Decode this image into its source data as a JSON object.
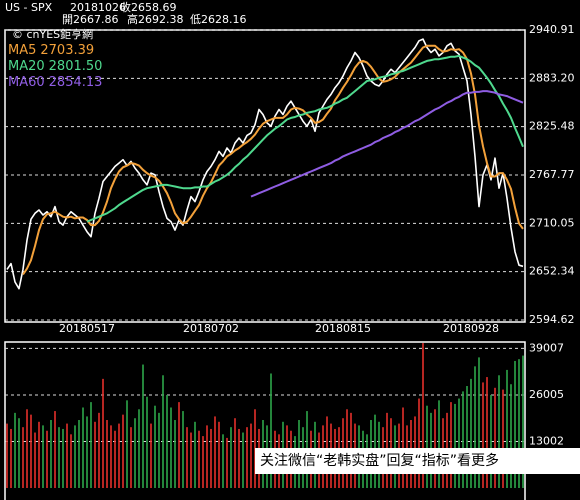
{
  "header": {
    "symbol": "US - SPX",
    "date": "20181026",
    "quotes": [
      {
        "label": "收",
        "value": 2658.69
      },
      {
        "label": "開",
        "value": 2667.86
      },
      {
        "label": "高",
        "value": 2692.38
      },
      {
        "label": "低",
        "value": 2628.16
      }
    ]
  },
  "watermark": "© cnYES鉅亨網",
  "footer": "关注微信“老韩实盘”回复“指标”看更多",
  "chart_data": [
    {
      "type": "line",
      "categories": [
        null,
        null,
        null,
        null,
        null,
        null,
        null,
        null,
        null,
        null,
        null,
        null,
        null,
        null,
        null,
        null,
        null,
        null,
        null,
        null,
        "20180517",
        null,
        null,
        null,
        null,
        null,
        null,
        null,
        null,
        null,
        null,
        null,
        null,
        null,
        null,
        null,
        null,
        null,
        null,
        null,
        null,
        null,
        null,
        null,
        null,
        null,
        null,
        null,
        null,
        null,
        null,
        "20180702",
        null,
        null,
        null,
        null,
        null,
        null,
        null,
        null,
        null,
        null,
        null,
        null,
        null,
        null,
        null,
        null,
        null,
        null,
        null,
        null,
        null,
        null,
        null,
        null,
        null,
        null,
        null,
        null,
        null,
        null,
        null,
        null,
        "20180815",
        null,
        null,
        null,
        null,
        null,
        null,
        null,
        null,
        null,
        null,
        null,
        null,
        null,
        null,
        null,
        null,
        null,
        null,
        null,
        null,
        null,
        null,
        null,
        null,
        null,
        null,
        null,
        null,
        null,
        null,
        null,
        "20180928",
        null,
        null,
        null,
        null,
        null,
        null,
        null,
        null,
        null,
        null,
        null,
        null,
        null
      ],
      "ylim": [
        2594.62,
        2940.91
      ],
      "yticks": [
        2594.62,
        2652.34,
        2710.05,
        2767.77,
        2825.48,
        {
          "value": 2883.2,
          "label": "2883.20"
        },
        2940.91
      ],
      "grid": true,
      "series": [
        {
          "color": "#ffffff",
          "values": [
            2655,
            2662,
            2640,
            2632,
            2655,
            2690,
            2715,
            2722,
            2726,
            2720,
            2724,
            2718,
            2730,
            2712,
            2708,
            2718,
            2724,
            2720,
            2716,
            2708,
            2700,
            2694,
            2722,
            2740,
            2760,
            2766,
            2772,
            2778,
            2782,
            2786,
            2779,
            2784,
            2776,
            2770,
            2762,
            2756,
            2770,
            2768,
            2748,
            2730,
            2716,
            2712,
            2702,
            2714,
            2708,
            2726,
            2742,
            2736,
            2748,
            2762,
            2772,
            2778,
            2786,
            2796,
            2790,
            2800,
            2794,
            2806,
            2812,
            2806,
            2815,
            2818,
            2828,
            2846,
            2840,
            2830,
            2826,
            2838,
            2846,
            2840,
            2850,
            2856,
            2848,
            2840,
            2832,
            2826,
            2834,
            2820,
            2842,
            2850,
            2858,
            2864,
            2872,
            2878,
            2886,
            2896,
            2904,
            2914,
            2908,
            2898,
            2886,
            2880,
            2876,
            2874,
            2880,
            2888,
            2894,
            2890,
            2896,
            2902,
            2908,
            2914,
            2920,
            2928,
            2930,
            2920,
            2914,
            2918,
            2910,
            2914,
            2922,
            2925,
            2916,
            2912,
            2896,
            2880,
            2840,
            2790,
            2730,
            2768,
            2780,
            2762,
            2788,
            2752,
            2770,
            2740,
            2705,
            2676,
            2660,
            2658.69
          ]
        },
        {
          "name": "MA5",
          "legend_label": "2703.39",
          "color": "#f3a13a",
          "values": [
            null,
            null,
            null,
            null,
            2649,
            2656,
            2666,
            2683,
            2702,
            2715,
            2721,
            2722,
            2724,
            2721,
            2718,
            2717,
            2718,
            2716,
            2717,
            2717,
            2714,
            2708,
            2708,
            2713,
            2723,
            2736,
            2752,
            2763,
            2772,
            2777,
            2779,
            2782,
            2781,
            2779,
            2774,
            2770,
            2767,
            2765,
            2761,
            2754,
            2746,
            2735,
            2722,
            2715,
            2710,
            2712,
            2718,
            2725,
            2732,
            2743,
            2752,
            2759,
            2769,
            2779,
            2784,
            2790,
            2793,
            2797,
            2800,
            2804,
            2807,
            2811,
            2816,
            2823,
            2829,
            2832,
            2834,
            2836,
            2836,
            2836,
            2840,
            2846,
            2848,
            2847,
            2845,
            2840,
            2836,
            2830,
            2831,
            2834,
            2841,
            2847,
            2857,
            2864,
            2872,
            2879,
            2887,
            2896,
            2902,
            2904,
            2902,
            2897,
            2890,
            2883,
            2879,
            2880,
            2882,
            2885,
            2890,
            2894,
            2898,
            2902,
            2908,
            2914,
            2920,
            2922,
            2922,
            2922,
            2918,
            2915,
            2916,
            2918,
            2917,
            2918,
            2914,
            2906,
            2889,
            2864,
            2827,
            2802,
            2782,
            2766,
            2766,
            2770,
            2770,
            2762,
            2751,
            2729,
            2710,
            2703.39
          ]
        },
        {
          "name": "MA20",
          "legend_label": "2801.50",
          "color": "#4fd98e",
          "values": [
            null,
            null,
            null,
            null,
            null,
            null,
            null,
            null,
            null,
            null,
            null,
            null,
            null,
            null,
            null,
            null,
            null,
            null,
            null,
            null,
            2712,
            2714,
            2716,
            2718,
            2720,
            2722,
            2725,
            2728,
            2732,
            2735,
            2738,
            2741,
            2744,
            2747,
            2750,
            2752,
            2753,
            2754,
            2755,
            2756,
            2756,
            2755,
            2754,
            2753,
            2752,
            2752,
            2752,
            2753,
            2753,
            2754,
            2754,
            2757,
            2760,
            2762,
            2765,
            2768,
            2772,
            2777,
            2781,
            2786,
            2790,
            2795,
            2800,
            2805,
            2810,
            2815,
            2819,
            2823,
            2826,
            2830,
            2834,
            2836,
            2837,
            2839,
            2840,
            2842,
            2843,
            2844,
            2846,
            2847,
            2848,
            2850,
            2853,
            2855,
            2858,
            2860,
            2864,
            2868,
            2872,
            2876,
            2880,
            2881,
            2882,
            2884,
            2885,
            2886,
            2888,
            2889,
            2891,
            2892,
            2894,
            2896,
            2898,
            2900,
            2902,
            2904,
            2905,
            2906,
            2906,
            2907,
            2908,
            2909,
            2909,
            2910,
            2908,
            2906,
            2903,
            2899,
            2896,
            2890,
            2884,
            2877,
            2869,
            2862,
            2853,
            2845,
            2836,
            2824,
            2813,
            2801.5
          ]
        },
        {
          "name": "MA60",
          "legend_label": "2854.13",
          "color": "#8f5de3",
          "values": [
            null,
            null,
            null,
            null,
            null,
            null,
            null,
            null,
            null,
            null,
            null,
            null,
            null,
            null,
            null,
            null,
            null,
            null,
            null,
            null,
            null,
            null,
            null,
            null,
            null,
            null,
            null,
            null,
            null,
            null,
            null,
            null,
            null,
            null,
            null,
            null,
            null,
            null,
            null,
            null,
            null,
            null,
            null,
            null,
            null,
            null,
            null,
            null,
            null,
            null,
            null,
            null,
            null,
            null,
            null,
            null,
            null,
            null,
            null,
            null,
            null,
            2742,
            2744,
            2746,
            2748,
            2750,
            2752,
            2754,
            2756,
            2758,
            2760,
            2762,
            2764,
            2766,
            2768,
            2770,
            2772,
            2774,
            2776,
            2778,
            2780,
            2782,
            2785,
            2787,
            2790,
            2792,
            2794,
            2796,
            2798,
            2800,
            2802,
            2804,
            2807,
            2809,
            2812,
            2814,
            2816,
            2819,
            2821,
            2824,
            2826,
            2829,
            2832,
            2834,
            2837,
            2840,
            2843,
            2846,
            2848,
            2851,
            2854,
            2856,
            2859,
            2861,
            2864,
            2866,
            2866,
            2867,
            2867,
            2868,
            2868,
            2867,
            2866,
            2864,
            2863,
            2862,
            2860,
            2858,
            2856,
            2854.13
          ]
        }
      ]
    },
    {
      "type": "bar",
      "values": [
        18000,
        16500,
        21000,
        19500,
        17000,
        22000,
        20500,
        15500,
        18500,
        17500,
        16000,
        19000,
        21500,
        17000,
        16500,
        18000,
        15000,
        17500,
        19000,
        22500,
        20000,
        24000,
        18500,
        21000,
        30500,
        19000,
        17500,
        16000,
        18000,
        20500,
        24500,
        17000,
        19500,
        22000,
        34500,
        25500,
        18000,
        23000,
        21000,
        31500,
        26000,
        22500,
        19000,
        24000,
        21500,
        17000,
        15500,
        18500,
        16000,
        14500,
        17500,
        16500,
        20000,
        18500,
        15000,
        14000,
        17000,
        19500,
        16500,
        15500,
        17000,
        18000,
        22000,
        16500,
        19000,
        17500,
        32000,
        16000,
        15000,
        18500,
        17500,
        16000,
        14500,
        19000,
        17000,
        21500,
        16000,
        18500,
        15500,
        17500,
        20000,
        18000,
        16500,
        17000,
        19500,
        22000,
        21000,
        18000,
        17500,
        16000,
        15000,
        19000,
        20500,
        18500,
        17000,
        21000,
        19500,
        17500,
        18000,
        22500,
        17500,
        19000,
        20000,
        25000,
        40500,
        23000,
        21000,
        22000,
        24500,
        19500,
        21000,
        24000,
        23500,
        25000,
        27000,
        28500,
        30500,
        34000,
        36500,
        29500,
        31000,
        26000,
        28000,
        31500,
        27500,
        33000,
        29000,
        35500,
        36000,
        37000
      ],
      "ylim": [
        0,
        40800
      ],
      "yticks": [
        13002,
        26005,
        39007
      ],
      "grid": true,
      "up_color": "#e3302b",
      "down_color": "#2ea64a"
    }
  ]
}
